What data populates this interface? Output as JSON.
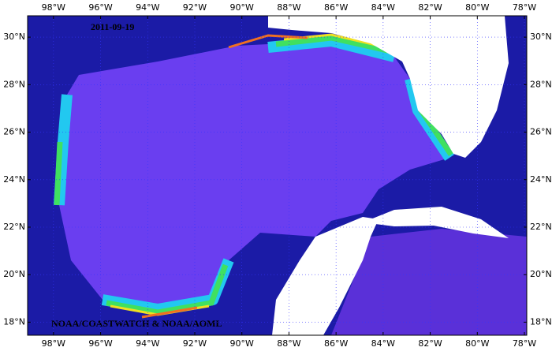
{
  "map": {
    "date": "2011-09-19",
    "credit": "NOAA/COASTWATCH & NOAA/AOML",
    "lon_range": [
      -99.1,
      -77.9
    ],
    "lat_range": [
      17.45,
      30.9
    ],
    "lon_ticks": [
      {
        "value": -98,
        "label": "98°W"
      },
      {
        "value": -96,
        "label": "96°W"
      },
      {
        "value": -94,
        "label": "94°W"
      },
      {
        "value": -92,
        "label": "92°W"
      },
      {
        "value": -90,
        "label": "90°W"
      },
      {
        "value": -88,
        "label": "88°W"
      },
      {
        "value": -86,
        "label": "86°W"
      },
      {
        "value": -84,
        "label": "84°W"
      },
      {
        "value": -82,
        "label": "82°W"
      },
      {
        "value": -80,
        "label": "80°W"
      },
      {
        "value": -78,
        "label": "78°W"
      }
    ],
    "lat_ticks": [
      {
        "value": 18,
        "label": "18°N"
      },
      {
        "value": 20,
        "label": "20°N"
      },
      {
        "value": 22,
        "label": "22°N"
      },
      {
        "value": 24,
        "label": "24°N"
      },
      {
        "value": 26,
        "label": "26°N"
      },
      {
        "value": 28,
        "label": "28°N"
      },
      {
        "value": 30,
        "label": "30°N"
      }
    ]
  }
}
